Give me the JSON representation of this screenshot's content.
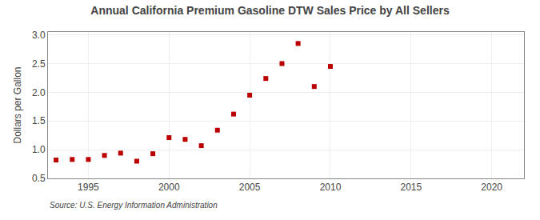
{
  "chart_data": {
    "type": "scatter",
    "title": "Annual California Premium Gasoline DTW Sales Price by All Sellers",
    "ylabel": "Dollars per Gallon",
    "annotations": [
      "Source: U.S. Energy Information Administration"
    ],
    "x": [
      1993,
      1994,
      1995,
      1996,
      1997,
      1998,
      1999,
      2000,
      2001,
      2002,
      2003,
      2004,
      2005,
      2006,
      2007,
      2008,
      2009,
      2010
    ],
    "values": [
      0.82,
      0.83,
      0.83,
      0.9,
      0.94,
      0.8,
      0.93,
      1.21,
      1.18,
      1.07,
      1.34,
      1.62,
      1.95,
      2.24,
      2.5,
      2.85,
      2.1,
      2.45
    ],
    "color": "#bb0000",
    "marker": "square",
    "xlim": [
      1992.5,
      2022
    ],
    "ylim": [
      0.5,
      3.05
    ],
    "xticks": [
      1995,
      2000,
      2005,
      2010,
      2015,
      2020
    ],
    "yticks": [
      0.5,
      {
        "value": 1,
        "label": "1.0"
      },
      1.5,
      {
        "value": 2,
        "label": "2.0"
      },
      2.5,
      {
        "value": 3,
        "label": "3.0"
      }
    ],
    "grid": true
  }
}
